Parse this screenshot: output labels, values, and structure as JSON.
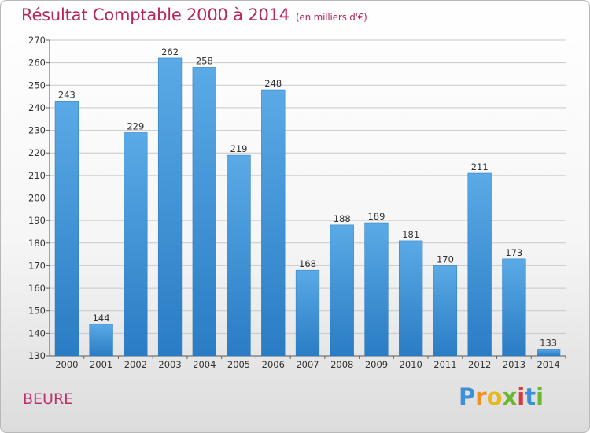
{
  "title": "Résultat Comptable 2000 à 2014",
  "subtitle": "(en milliers d'€)",
  "commune": "BEURE",
  "logo": {
    "letters": [
      "P",
      "r",
      "o",
      "x",
      "i",
      "t",
      "i"
    ],
    "colors": [
      "#3d8fd6",
      "#f0901e",
      "#e8b81c",
      "#6ab82e",
      "#d63a3a",
      "#3d8fd6",
      "#6ab82e"
    ]
  },
  "colors": {
    "bar_light": "#5aaae6",
    "bar_dark": "#2a7cc4",
    "title": "#b5265a"
  },
  "chart_data": {
    "type": "bar",
    "title": "Résultat Comptable 2000 à 2014",
    "subtitle": "(en milliers d'€)",
    "xlabel": "",
    "ylabel": "",
    "categories": [
      "2000",
      "2001",
      "2002",
      "2003",
      "2004",
      "2005",
      "2006",
      "2007",
      "2008",
      "2009",
      "2010",
      "2011",
      "2012",
      "2013",
      "2014"
    ],
    "values": [
      243,
      144,
      229,
      262,
      258,
      219,
      248,
      168,
      188,
      189,
      181,
      170,
      211,
      173,
      133
    ],
    "ylim": [
      130,
      270
    ],
    "yticks": [
      130,
      140,
      150,
      160,
      170,
      180,
      190,
      200,
      210,
      220,
      230,
      240,
      250,
      260,
      270
    ],
    "grid": true
  }
}
